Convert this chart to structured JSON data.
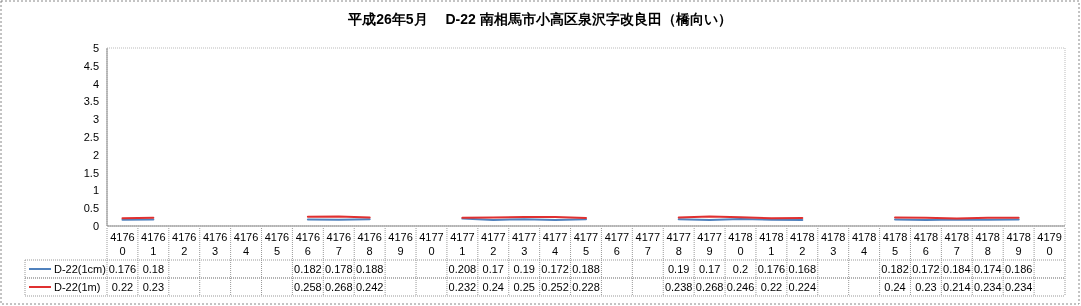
{
  "chart_data": {
    "type": "line",
    "title": "平成26年5月　 D-22 南相馬市小高区泉沢字改良田（橋向い）",
    "categories": [
      "41760",
      "41761",
      "41762",
      "41763",
      "41764",
      "41765",
      "41766",
      "41767",
      "41768",
      "41769",
      "41770",
      "41771",
      "41772",
      "41773",
      "41774",
      "41775",
      "41776",
      "41777",
      "41778",
      "41779",
      "41780",
      "41781",
      "41782",
      "41783",
      "41784",
      "41785",
      "41786",
      "41787",
      "41788",
      "41789",
      "41790"
    ],
    "series": [
      {
        "name": "D-22(1cm)",
        "color": "#4f81bd",
        "values": [
          0.176,
          0.18,
          null,
          null,
          null,
          null,
          0.182,
          0.178,
          0.188,
          null,
          null,
          0.208,
          0.17,
          0.19,
          0.172,
          0.188,
          null,
          null,
          0.19,
          0.17,
          0.2,
          0.176,
          0.168,
          null,
          null,
          0.182,
          0.172,
          0.184,
          0.174,
          0.186,
          null
        ]
      },
      {
        "name": "D-22(1m)",
        "color": "#e03030",
        "values": [
          0.22,
          0.23,
          null,
          null,
          null,
          null,
          0.258,
          0.268,
          0.242,
          null,
          null,
          0.232,
          0.24,
          0.25,
          0.252,
          0.228,
          null,
          null,
          0.238,
          0.268,
          0.246,
          0.22,
          0.224,
          null,
          null,
          0.24,
          0.23,
          0.214,
          0.234,
          0.234,
          null
        ]
      }
    ],
    "ylim": [
      0,
      5
    ],
    "yticks": [
      0,
      0.5,
      1,
      1.5,
      2,
      2.5,
      3,
      3.5,
      4,
      4.5,
      5
    ],
    "data_labels": true,
    "legend": "bottom",
    "grid": false,
    "marker": "none",
    "line_style": "solid"
  }
}
